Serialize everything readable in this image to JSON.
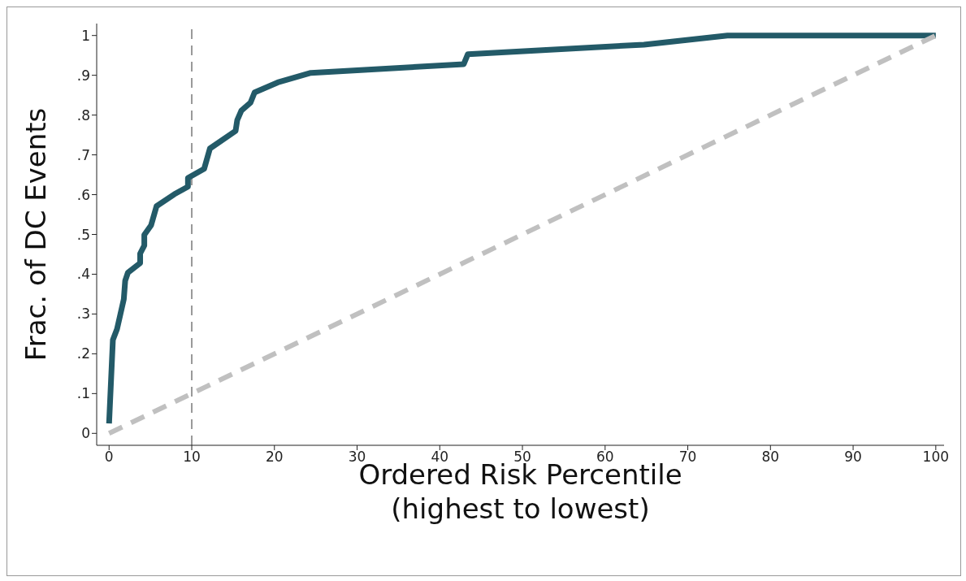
{
  "chart_data": {
    "type": "line",
    "xlabel": "Ordered Risk Percentile\n(highest to lowest)",
    "ylabel": "Frac. of DC Events",
    "xlim": [
      -1.5,
      101
    ],
    "xticks": [
      0,
      10,
      20,
      30,
      40,
      50,
      60,
      70,
      80,
      90,
      100
    ],
    "ylim": [
      -0.03,
      1.03
    ],
    "yticks": [
      {
        "value": 0,
        "label": "0"
      },
      {
        "value": 0.1,
        "label": ".1"
      },
      {
        "value": 0.2,
        "label": ".2"
      },
      {
        "value": 0.3,
        "label": ".3"
      },
      {
        "value": 0.4,
        "label": ".4"
      },
      {
        "value": 0.5,
        "label": ".5"
      },
      {
        "value": 0.6,
        "label": ".6"
      },
      {
        "value": 0.7,
        "label": ".7"
      },
      {
        "value": 0.8,
        "label": ".8"
      },
      {
        "value": 0.9,
        "label": ".9"
      },
      {
        "value": 1,
        "label": "1"
      }
    ],
    "marker": "none",
    "series": [
      {
        "color": "#235a68",
        "line_style": "solid",
        "x": [
          0,
          0.46,
          0.96,
          1.78,
          1.95,
          2.28,
          3.76,
          3.76,
          4.26,
          4.26,
          5.08,
          5.74,
          7.89,
          9.54,
          9.54,
          11.5,
          12.2,
          15.3,
          15.5,
          16,
          17.1,
          17.6,
          20.4,
          24.4,
          42.9,
          43.4,
          64.7,
          74.8,
          100
        ],
        "values": [
          0.025,
          0.235,
          0.262,
          0.337,
          0.384,
          0.404,
          0.428,
          0.452,
          0.472,
          0.499,
          0.523,
          0.571,
          0.601,
          0.62,
          0.642,
          0.665,
          0.716,
          0.76,
          0.787,
          0.811,
          0.831,
          0.857,
          0.882,
          0.906,
          0.928,
          0.953,
          0.977,
          1,
          1
        ]
      },
      {
        "color": "#c0c0c0",
        "line_style": "dashed",
        "x": [
          0,
          100
        ],
        "values": [
          0,
          1
        ]
      }
    ],
    "ref_lines": [
      {
        "axis": "x",
        "value": 10,
        "color": "#999999",
        "line_style": "dashed"
      }
    ]
  }
}
